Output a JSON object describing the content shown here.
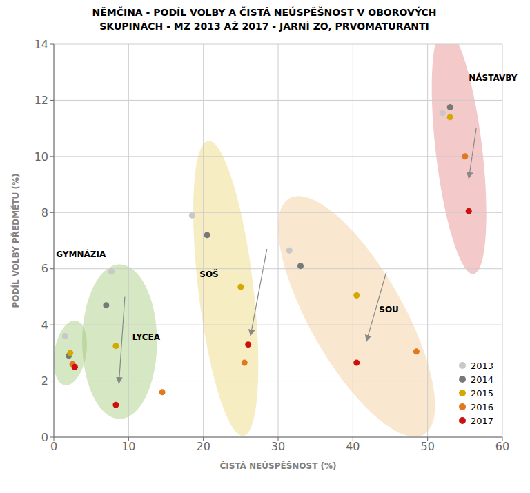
{
  "chart_data": {
    "type": "scatter",
    "title": "NĚMČINA - PODÍL VOLBY A ČISTÁ NEÚSPĚŠNOST V OBOROVÝCH\nSKUPINÁCH - MZ 2013 AŽ 2017 - JARNÍ ZO, PRVOMATURANTI",
    "xlabel": "ČISTÁ NEÚSPĚŠNOST (%)",
    "ylabel": "PODÍL VOLBY PŘEDMĚTU (%)",
    "xlim": [
      0,
      60
    ],
    "ylim": [
      0,
      14
    ],
    "xticks": [
      0,
      10,
      20,
      30,
      40,
      50,
      60
    ],
    "yticks": [
      0,
      2,
      4,
      6,
      8,
      10,
      12,
      14
    ],
    "grid": true,
    "legend": "lower right",
    "series": [
      {
        "name": "2013",
        "color": "#c8c8c8",
        "x": [
          1.5,
          7.7,
          18.5,
          31.5,
          52.0
        ],
        "values": [
          3.6,
          5.9,
          7.9,
          6.65,
          11.55
        ]
      },
      {
        "name": "2014",
        "color": "#787878",
        "x": [
          2.0,
          7.0,
          20.5,
          33.0,
          53.0
        ],
        "values": [
          2.9,
          4.7,
          7.2,
          6.1,
          11.75
        ]
      },
      {
        "name": "2015",
        "color": "#d4a800",
        "x": [
          2.2,
          8.3,
          25.0,
          40.5,
          53.0
        ],
        "values": [
          3.0,
          3.25,
          5.35,
          5.05,
          11.4
        ]
      },
      {
        "name": "2016",
        "color": "#e07820",
        "x": [
          2.5,
          14.5,
          25.5,
          48.5,
          55.0
        ],
        "values": [
          2.6,
          1.6,
          2.65,
          3.05,
          10.0
        ]
      },
      {
        "name": "2017",
        "color": "#cc1010",
        "x": [
          2.8,
          8.3,
          26.0,
          40.5,
          55.5
        ],
        "values": [
          2.5,
          1.15,
          3.3,
          2.65,
          8.05
        ]
      }
    ],
    "ellipses": [
      {
        "center": [
          2.2,
          3.0
        ],
        "width": 4.5,
        "height": 2.2,
        "angle": 10,
        "color": "#90c060"
      },
      {
        "center": [
          8.8,
          3.4
        ],
        "width": 10.0,
        "height": 5.5,
        "angle": 0,
        "color": "#90c060"
      },
      {
        "center": [
          23.0,
          5.3
        ],
        "width": 12.0,
        "height": 6.5,
        "angle": -55,
        "color": "#e8d060"
      },
      {
        "center": [
          40.5,
          4.3
        ],
        "width": 22.0,
        "height": 5.5,
        "angle": -18,
        "color": "#f0c080"
      },
      {
        "center": [
          54.2,
          10.2
        ],
        "width": 10.0,
        "height": 5.5,
        "angle": -55,
        "color": "#e07070"
      }
    ],
    "arrows": [
      {
        "start": [
          9.5,
          5.0
        ],
        "end": [
          8.7,
          1.9
        ],
        "color": "#888888"
      },
      {
        "start": [
          28.5,
          6.7
        ],
        "end": [
          26.3,
          3.6
        ],
        "color": "#888888"
      },
      {
        "start": [
          44.5,
          5.9
        ],
        "end": [
          41.8,
          3.4
        ],
        "color": "#888888"
      },
      {
        "start": [
          56.5,
          11.0
        ],
        "end": [
          55.5,
          9.2
        ],
        "color": "#888888"
      }
    ],
    "annotations": [
      {
        "text": "GYMNÁZIA",
        "x": 0.3,
        "y": 6.5
      },
      {
        "text": "LYCEA",
        "x": 10.5,
        "y": 3.55
      },
      {
        "text": "SOŠ",
        "x": 19.5,
        "y": 5.8
      },
      {
        "text": "SOU",
        "x": 43.5,
        "y": 4.55
      },
      {
        "text": "NÁSTAVBY",
        "x": 55.5,
        "y": 12.8
      }
    ]
  }
}
